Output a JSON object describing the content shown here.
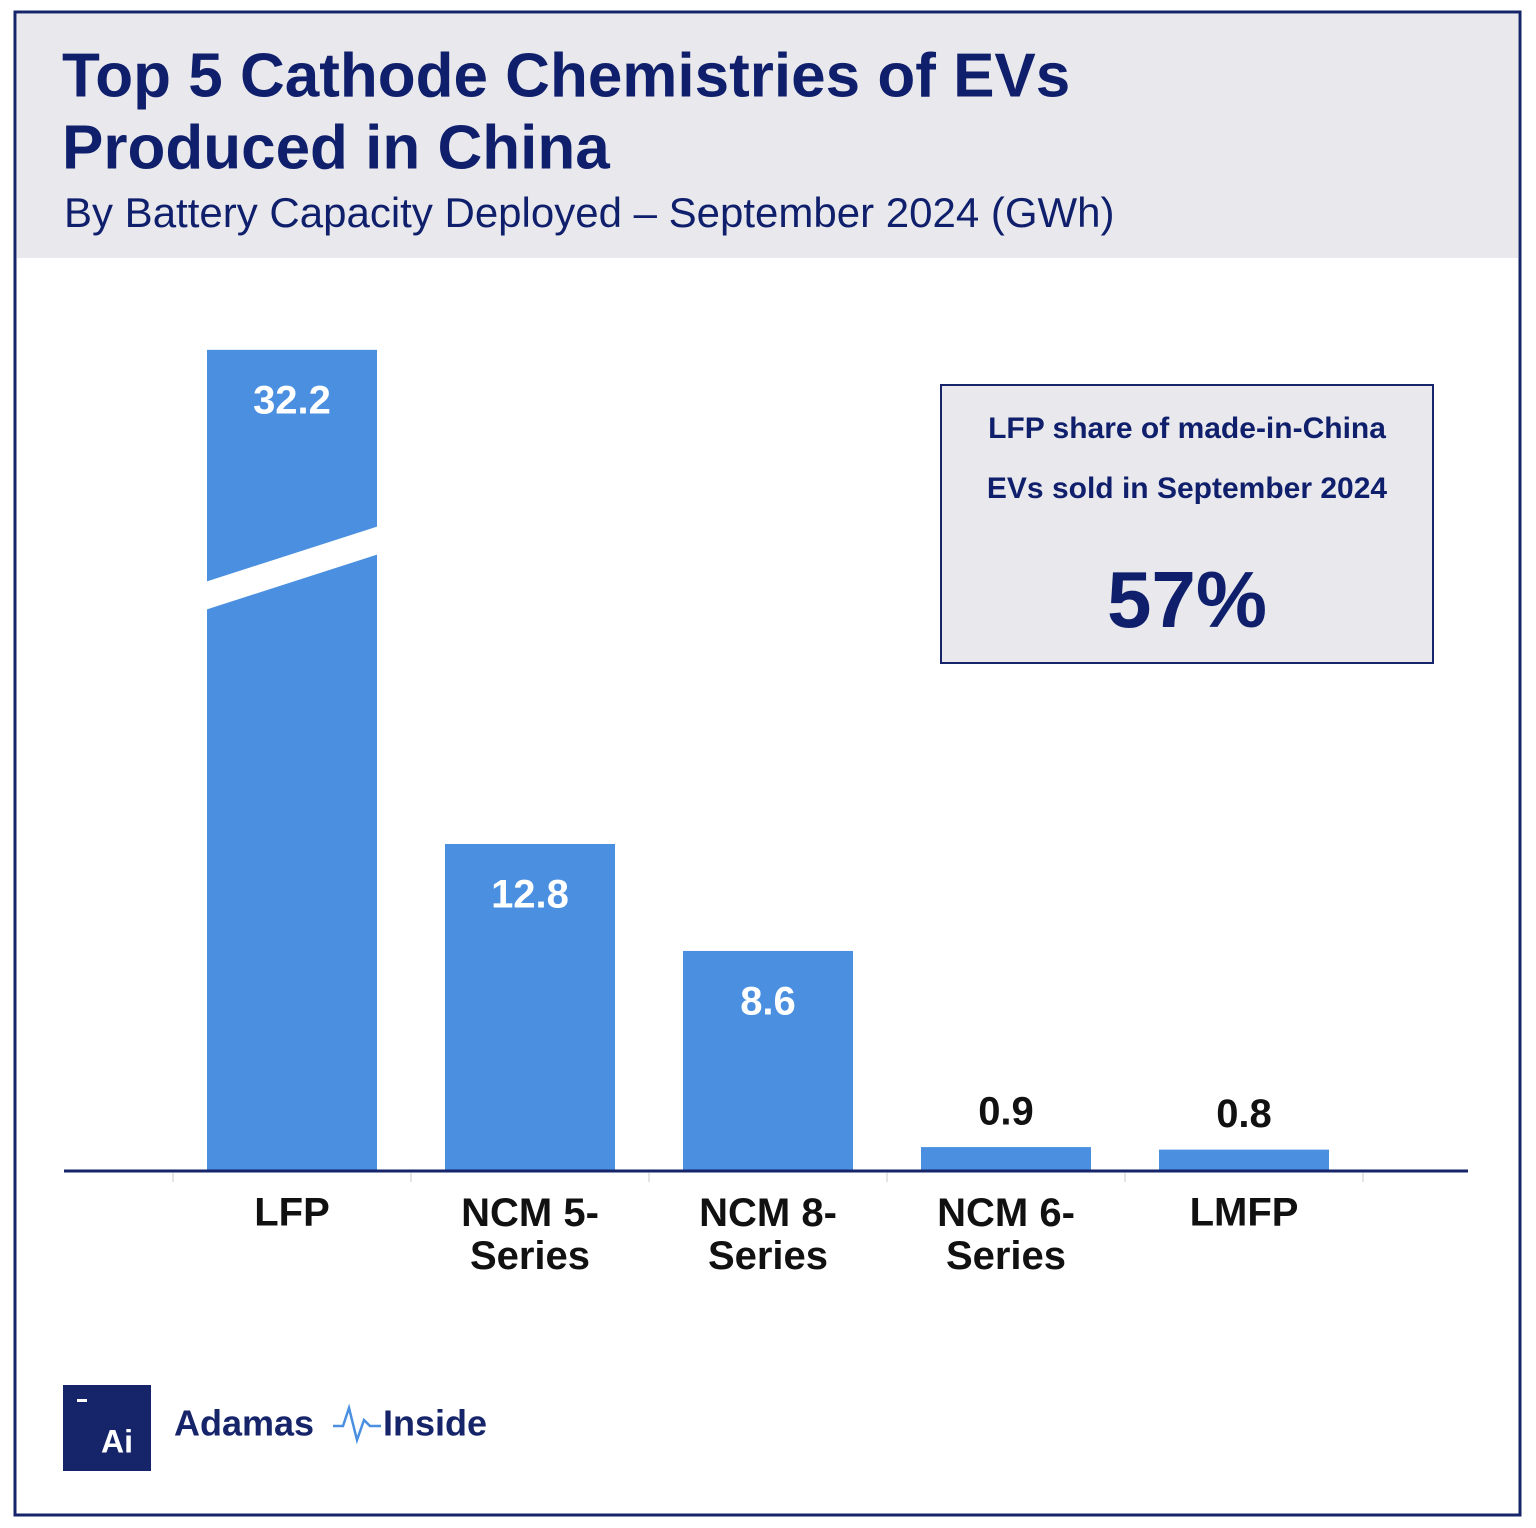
{
  "chart_data": {
    "type": "bar",
    "title": [
      "Top 5 Cathode Chemistries of EVs",
      "Produced in China"
    ],
    "subtitle": "By Battery Capacity Deployed – September 2024 (GWh)",
    "categories": [
      "LFP",
      "NCM 5-Series",
      "NCM 8-Series",
      "NCM 6-Series",
      "LMFP"
    ],
    "values": [
      32.2,
      12.8,
      8.6,
      0.9,
      0.8
    ],
    "color": "#4a8fe0",
    "ylim": [
      0,
      34
    ],
    "annotation": {
      "lines": [
        "LFP share of made-in-China",
        "EVs sold in September 2024"
      ],
      "value": "57%"
    },
    "logo_text": "Ai",
    "brand": [
      "Adamas",
      "Inside"
    ]
  }
}
